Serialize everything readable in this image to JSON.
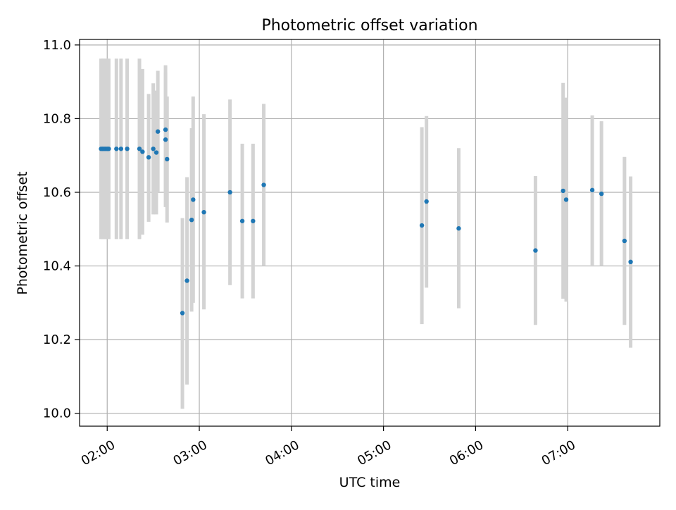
{
  "chart_data": {
    "type": "scatter",
    "title": "Photometric offset variation",
    "xlabel": "UTC time",
    "ylabel": "Photometric offset",
    "x_ticks": [
      "02:00",
      "03:00",
      "04:00",
      "05:00",
      "06:00",
      "07:00"
    ],
    "y_ticks": [
      "10.0",
      "10.2",
      "10.4",
      "10.6",
      "10.8",
      "11.0"
    ],
    "xlim": [
      "01:42",
      "08:00"
    ],
    "ylim": [
      9.965,
      11.015
    ],
    "grid": true,
    "colors": {
      "points": "#1f77b4",
      "error_bars": "#d3d3d3",
      "grid": "#b0b0b0",
      "axes": "#000000"
    },
    "series": [
      {
        "points": [
          {
            "x": "01:56",
            "y": 10.718,
            "ymin": 10.473,
            "ymax": 10.963
          },
          {
            "x": "01:57",
            "y": 10.718,
            "ymin": 10.473,
            "ymax": 10.963
          },
          {
            "x": "01:58",
            "y": 10.718,
            "ymin": 10.473,
            "ymax": 10.963
          },
          {
            "x": "01:59",
            "y": 10.718,
            "ymin": 10.473,
            "ymax": 10.963
          },
          {
            "x": "02:00",
            "y": 10.718,
            "ymin": 10.473,
            "ymax": 10.963
          },
          {
            "x": "02:01",
            "y": 10.718,
            "ymin": 10.473,
            "ymax": 10.963
          },
          {
            "x": "02:06",
            "y": 10.718,
            "ymin": 10.473,
            "ymax": 10.963
          },
          {
            "x": "02:09",
            "y": 10.718,
            "ymin": 10.473,
            "ymax": 10.963
          },
          {
            "x": "02:13",
            "y": 10.718,
            "ymin": 10.473,
            "ymax": 10.963
          },
          {
            "x": "02:21",
            "y": 10.718,
            "ymin": 10.473,
            "ymax": 10.963
          },
          {
            "x": "02:23",
            "y": 10.71,
            "ymin": 10.485,
            "ymax": 10.935
          },
          {
            "x": "02:27",
            "y": 10.695,
            "ymin": 10.52,
            "ymax": 10.867
          },
          {
            "x": "02:30",
            "y": 10.718,
            "ymin": 10.54,
            "ymax": 10.896
          },
          {
            "x": "02:32",
            "y": 10.708,
            "ymin": 10.54,
            "ymax": 10.876
          },
          {
            "x": "02:33",
            "y": 10.765,
            "ymin": 10.6,
            "ymax": 10.93
          },
          {
            "x": "02:38",
            "y": 10.77,
            "ymin": 10.6,
            "ymax": 10.945
          },
          {
            "x": "02:38",
            "y": 10.743,
            "ymin": 10.56,
            "ymax": 10.926
          },
          {
            "x": "02:39",
            "y": 10.69,
            "ymin": 10.518,
            "ymax": 10.86
          },
          {
            "x": "02:49",
            "y": 10.272,
            "ymin": 10.012,
            "ymax": 10.53
          },
          {
            "x": "02:52",
            "y": 10.36,
            "ymin": 10.078,
            "ymax": 10.641
          },
          {
            "x": "02:55",
            "y": 10.525,
            "ymin": 10.276,
            "ymax": 10.774
          },
          {
            "x": "02:56",
            "y": 10.58,
            "ymin": 10.3,
            "ymax": 10.86
          },
          {
            "x": "03:03",
            "y": 10.546,
            "ymin": 10.282,
            "ymax": 10.812
          },
          {
            "x": "03:20",
            "y": 10.6,
            "ymin": 10.348,
            "ymax": 10.852
          },
          {
            "x": "03:28",
            "y": 10.522,
            "ymin": 10.312,
            "ymax": 10.732
          },
          {
            "x": "03:35",
            "y": 10.522,
            "ymin": 10.312,
            "ymax": 10.732
          },
          {
            "x": "03:42",
            "y": 10.62,
            "ymin": 10.4,
            "ymax": 10.84
          },
          {
            "x": "05:25",
            "y": 10.51,
            "ymin": 10.242,
            "ymax": 10.777
          },
          {
            "x": "05:28",
            "y": 10.575,
            "ymin": 10.341,
            "ymax": 10.807
          },
          {
            "x": "05:49",
            "y": 10.502,
            "ymin": 10.285,
            "ymax": 10.72
          },
          {
            "x": "06:39",
            "y": 10.442,
            "ymin": 10.24,
            "ymax": 10.644
          },
          {
            "x": "06:57",
            "y": 10.604,
            "ymin": 10.311,
            "ymax": 10.897
          },
          {
            "x": "06:59",
            "y": 10.58,
            "ymin": 10.303,
            "ymax": 10.857
          },
          {
            "x": "07:16",
            "y": 10.606,
            "ymin": 10.402,
            "ymax": 10.809
          },
          {
            "x": "07:22",
            "y": 10.596,
            "ymin": 10.4,
            "ymax": 10.793
          },
          {
            "x": "07:37",
            "y": 10.468,
            "ymin": 10.24,
            "ymax": 10.696
          },
          {
            "x": "07:41",
            "y": 10.411,
            "ymin": 10.178,
            "ymax": 10.643
          }
        ]
      }
    ]
  }
}
